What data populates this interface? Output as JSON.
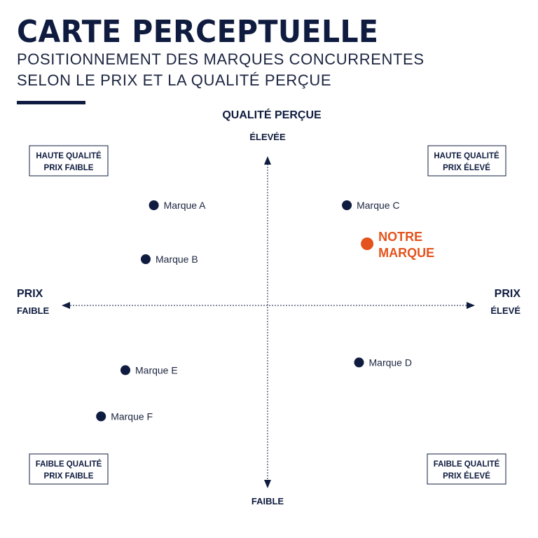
{
  "header": {
    "title": "CARTE PERCEPTUELLE",
    "subtitle_line1": "POSITIONNEMENT DES MARQUES CONCURRENTES",
    "subtitle_line2": "SELON LE PRIX ET LA QUALITÉ PERÇUE"
  },
  "colors": {
    "navy": "#0f1c3f",
    "accent": "#e4531d",
    "text": "#1c2540"
  },
  "chart_data": {
    "type": "scatter",
    "title": "CARTE PERCEPTUELLE",
    "x_axis": {
      "label": "PRIX",
      "low": "FAIBLE",
      "high": "ÉLEVÉ"
    },
    "y_axis": {
      "label": "QUALITÉ PERÇUE",
      "low": "FAIBLE",
      "high": "ÉLEVÉE"
    },
    "xlim": [
      -1,
      1
    ],
    "ylim": [
      -1,
      1
    ],
    "quadrants": {
      "top_left": [
        "HAUTE QUALITÉ",
        "PRIX FAIBLE"
      ],
      "top_right": [
        "HAUTE QUALITÉ",
        "PRIX ÉLEVÉ"
      ],
      "bottom_left": [
        "FAIBLE QUALITÉ",
        "PRIX FAIBLE"
      ],
      "bottom_right": [
        "FAIBLE QUALITÉ",
        "PRIX ÉLEVÉ"
      ]
    },
    "points": [
      {
        "name": "Marque A",
        "x": -0.56,
        "y": 0.65,
        "highlight": false
      },
      {
        "name": "Marque B",
        "x": -0.6,
        "y": 0.3,
        "highlight": false
      },
      {
        "name": "Marque C",
        "x": 0.39,
        "y": 0.65,
        "highlight": false
      },
      {
        "name": "NOTRE MARQUE",
        "label_lines": [
          "NOTRE",
          "MARQUE"
        ],
        "x": 0.49,
        "y": 0.4,
        "highlight": true
      },
      {
        "name": "Marque D",
        "x": 0.45,
        "y": -0.37,
        "highlight": false
      },
      {
        "name": "Marque E",
        "x": -0.7,
        "y": -0.42,
        "highlight": false
      },
      {
        "name": "Marque F",
        "x": -0.82,
        "y": -0.72,
        "highlight": false
      }
    ],
    "grid": false,
    "legend": "none"
  }
}
